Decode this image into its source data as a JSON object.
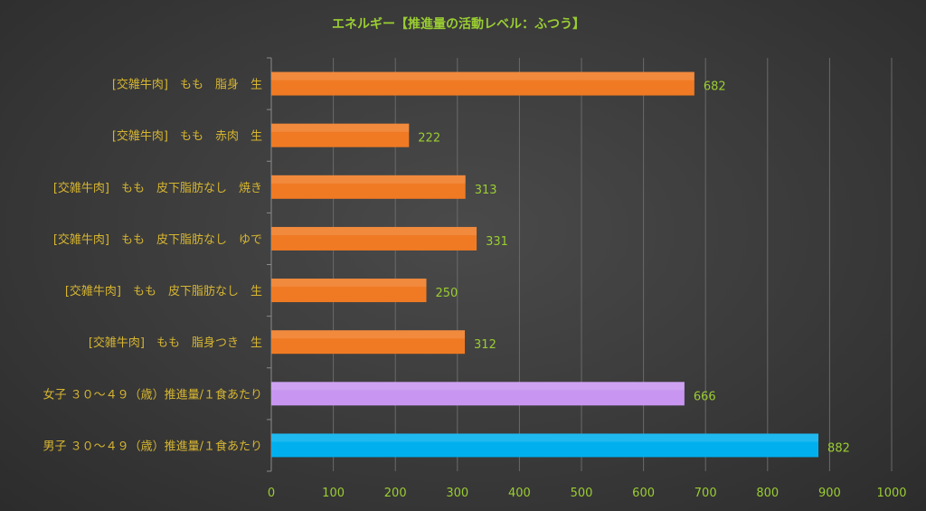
{
  "chart_data": {
    "type": "bar",
    "orientation": "horizontal",
    "title": "エネルギー【推進量の活動レベル：ふつう】",
    "categories": [
      "[交雑牛肉]　もも　脂身　生",
      "[交雑牛肉]　もも　赤肉　生",
      "[交雑牛肉]　もも　皮下脂肪なし　焼き",
      "[交雑牛肉]　もも　皮下脂肪なし　ゆで",
      "[交雑牛肉]　もも　皮下脂肪なし　生",
      "[交雑牛肉]　もも　脂身つき　生",
      "女子 ３０～４９（歳）推進量/１食あたり",
      "男子 ３０～４９（歳）推進量/１食あたり"
    ],
    "values": [
      682,
      222,
      313,
      331,
      250,
      312,
      666,
      882
    ],
    "bar_colors": [
      "#f07a23",
      "#f07a23",
      "#f07a23",
      "#f07a23",
      "#f07a23",
      "#f07a23",
      "#c896f0",
      "#00b0ee"
    ],
    "xlim": [
      0,
      1000
    ],
    "xticks": [
      0,
      100,
      200,
      300,
      400,
      500,
      600,
      700,
      800,
      900,
      1000
    ],
    "grid": true,
    "colors": {
      "title": "#9acd32",
      "category_label": "#d6b531",
      "value_label": "#9acd32",
      "tick_label": "#9acd32"
    }
  }
}
